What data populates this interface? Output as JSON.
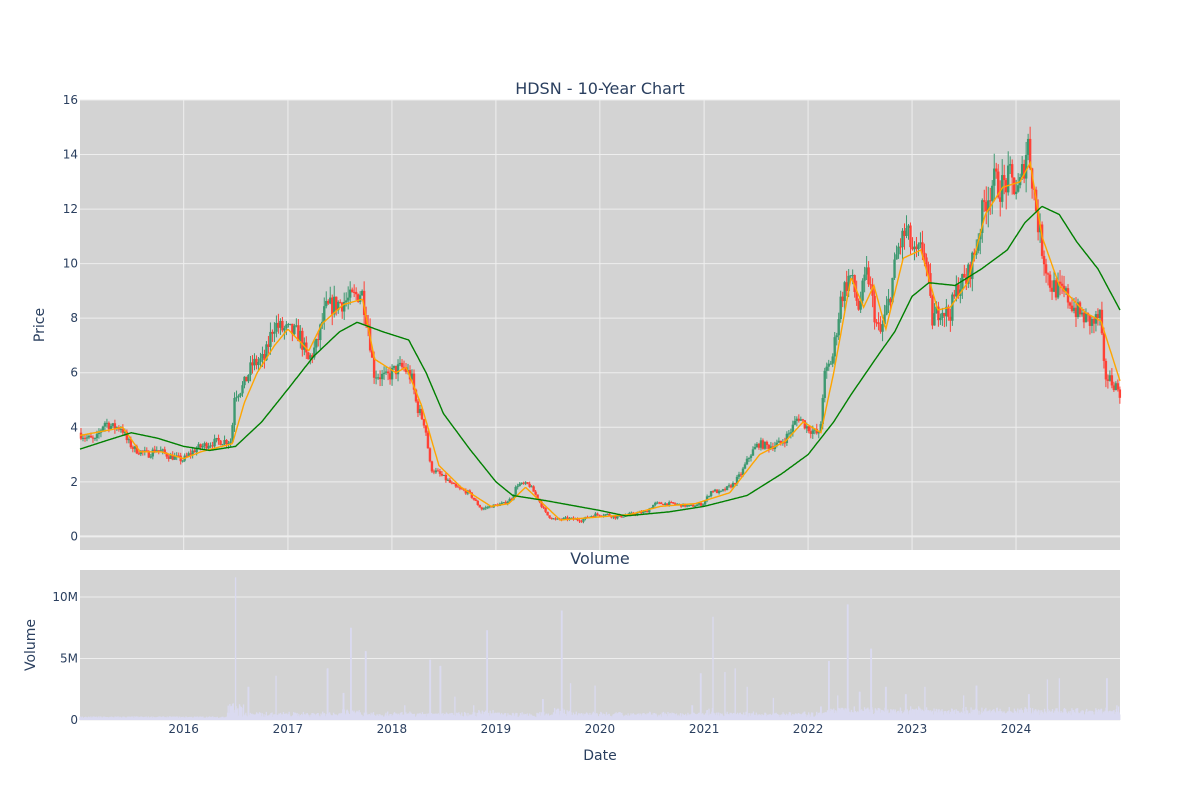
{
  "chart_data": [
    {
      "type": "candlestick",
      "title": "HDSN - 10-Year Chart",
      "xlabel": "",
      "ylabel": "Price",
      "ylim": [
        -0.5,
        16
      ],
      "yticks": [
        0,
        2,
        4,
        6,
        8,
        10,
        12,
        14,
        16
      ],
      "xlim": [
        "2015-01-02",
        "2024-12-31"
      ],
      "colors": {
        "up": "#3d9970",
        "down": "#ff4136",
        "ma_fast": "#ffa500",
        "ma_slow": "#008000",
        "plot_bg": "#d3d3d3",
        "grid": "#eeeeee"
      },
      "series": [
        {
          "type": "ohlc",
          "colors": [
            "#3d9970",
            "#ff4136"
          ]
        },
        {
          "type": "line",
          "color": "#ffa500"
        },
        {
          "type": "line",
          "color": "#008000"
        }
      ],
      "price_path": [
        [
          "2015-01-02",
          3.8
        ],
        [
          "2015-02-01",
          3.6
        ],
        [
          "2015-03-01",
          3.5
        ],
        [
          "2015-04-01",
          4.2
        ],
        [
          "2015-05-01",
          4.0
        ],
        [
          "2015-06-01",
          4.0
        ],
        [
          "2015-06-20",
          3.5
        ],
        [
          "2015-07-15",
          3.2
        ],
        [
          "2015-09-01",
          3.0
        ],
        [
          "2015-10-01",
          3.2
        ],
        [
          "2015-11-15",
          2.95
        ],
        [
          "2016-01-01",
          2.8
        ],
        [
          "2016-02-15",
          3.2
        ],
        [
          "2016-04-01",
          3.4
        ],
        [
          "2016-05-15",
          3.5
        ],
        [
          "2016-06-20",
          3.5
        ],
        [
          "2016-07-01",
          5.2
        ],
        [
          "2016-08-01",
          5.5
        ],
        [
          "2016-09-01",
          6.3
        ],
        [
          "2016-10-15",
          6.5
        ],
        [
          "2016-11-15",
          7.8
        ],
        [
          "2016-12-15",
          7.6
        ],
        [
          "2017-01-15",
          7.5
        ],
        [
          "2017-02-15",
          7.4
        ],
        [
          "2017-03-15",
          6.4
        ],
        [
          "2017-04-15",
          7.0
        ],
        [
          "2017-05-15",
          8.3
        ],
        [
          "2017-06-15",
          8.5
        ],
        [
          "2017-07-15",
          8.6
        ],
        [
          "2017-08-15",
          8.7
        ],
        [
          "2017-09-20",
          9.0
        ],
        [
          "2017-10-15",
          7.6
        ],
        [
          "2017-11-01",
          6.0
        ],
        [
          "2017-12-15",
          5.8
        ],
        [
          "2018-01-15",
          6.1
        ],
        [
          "2018-02-15",
          6.2
        ],
        [
          "2018-03-15",
          5.8
        ],
        [
          "2018-04-01",
          4.8
        ],
        [
          "2018-05-01",
          4.1
        ],
        [
          "2018-05-20",
          2.5
        ],
        [
          "2018-07-01",
          2.2
        ],
        [
          "2018-08-15",
          1.8
        ],
        [
          "2018-10-01",
          1.6
        ],
        [
          "2018-11-15",
          1.0
        ],
        [
          "2018-12-15",
          1.1
        ],
        [
          "2019-02-01",
          1.2
        ],
        [
          "2019-03-01",
          1.4
        ],
        [
          "2019-03-20",
          1.9
        ],
        [
          "2019-05-01",
          1.9
        ],
        [
          "2019-06-01",
          1.4
        ],
        [
          "2019-07-01",
          0.8
        ],
        [
          "2019-08-01",
          0.6
        ],
        [
          "2019-09-15",
          0.65
        ],
        [
          "2019-11-01",
          0.6
        ],
        [
          "2019-12-15",
          0.8
        ],
        [
          "2020-02-01",
          0.8
        ],
        [
          "2020-03-01",
          0.7
        ],
        [
          "2020-04-15",
          0.8
        ],
        [
          "2020-06-15",
          0.9
        ],
        [
          "2020-07-15",
          1.2
        ],
        [
          "2020-09-15",
          1.2
        ],
        [
          "2020-11-15",
          1.1
        ],
        [
          "2021-01-01",
          1.2
        ],
        [
          "2021-02-01",
          1.7
        ],
        [
          "2021-03-01",
          1.6
        ],
        [
          "2021-04-15",
          1.9
        ],
        [
          "2021-05-15",
          2.3
        ],
        [
          "2021-06-15",
          3.0
        ],
        [
          "2021-07-15",
          3.4
        ],
        [
          "2021-08-15",
          3.3
        ],
        [
          "2021-10-01",
          3.4
        ],
        [
          "2021-11-01",
          3.8
        ],
        [
          "2021-12-01",
          4.4
        ],
        [
          "2022-01-01",
          4.0
        ],
        [
          "2022-02-15",
          3.7
        ],
        [
          "2022-03-01",
          5.8
        ],
        [
          "2022-04-01",
          6.6
        ],
        [
          "2022-05-01",
          8.8
        ],
        [
          "2022-06-01",
          9.6
        ],
        [
          "2022-07-01",
          8.4
        ],
        [
          "2022-08-01",
          9.7
        ],
        [
          "2022-09-01",
          7.8
        ],
        [
          "2022-09-15",
          7.4
        ],
        [
          "2022-10-15",
          8.6
        ],
        [
          "2022-11-15",
          10.5
        ],
        [
          "2022-12-15",
          11.2
        ],
        [
          "2023-01-15",
          10.2
        ],
        [
          "2023-02-15",
          10.6
        ],
        [
          "2023-03-01",
          9.5
        ],
        [
          "2023-03-15",
          7.9
        ],
        [
          "2023-04-15",
          8.4
        ],
        [
          "2023-05-15",
          8.1
        ],
        [
          "2023-06-15",
          9.2
        ],
        [
          "2023-07-15",
          9.4
        ],
        [
          "2023-08-15",
          10.5
        ],
        [
          "2023-09-15",
          12.2
        ],
        [
          "2023-10-15",
          13.0
        ],
        [
          "2023-11-15",
          12.8
        ],
        [
          "2023-12-15",
          13.1
        ],
        [
          "2024-01-15",
          12.6
        ],
        [
          "2024-02-15",
          14.5
        ],
        [
          "2024-03-15",
          12.0
        ],
        [
          "2024-04-01",
          10.8
        ],
        [
          "2024-05-01",
          9.3
        ],
        [
          "2024-06-01",
          9.0
        ],
        [
          "2024-07-01",
          8.8
        ],
        [
          "2024-08-01",
          8.3
        ],
        [
          "2024-09-01",
          8.0
        ],
        [
          "2024-10-01",
          7.8
        ],
        [
          "2024-10-25",
          8.1
        ],
        [
          "2024-11-10",
          5.9
        ],
        [
          "2024-12-15",
          5.6
        ],
        [
          "2024-12-31",
          5.3
        ]
      ],
      "ma_fast_path": [
        [
          "2015-01-02",
          3.7
        ],
        [
          "2015-04-15",
          3.9
        ],
        [
          "2015-06-01",
          4.0
        ],
        [
          "2015-08-01",
          3.1
        ],
        [
          "2015-10-15",
          3.1
        ],
        [
          "2016-01-01",
          2.85
        ],
        [
          "2016-03-01",
          3.1
        ],
        [
          "2016-06-20",
          3.4
        ],
        [
          "2016-08-01",
          4.9
        ],
        [
          "2016-09-15",
          6.0
        ],
        [
          "2016-11-15",
          7.0
        ],
        [
          "2017-01-01",
          7.6
        ],
        [
          "2017-03-15",
          6.8
        ],
        [
          "2017-05-01",
          7.8
        ],
        [
          "2017-07-15",
          8.5
        ],
        [
          "2017-09-20",
          8.7
        ],
        [
          "2017-11-01",
          6.5
        ],
        [
          "2018-01-15",
          6.0
        ],
        [
          "2018-02-20",
          6.2
        ],
        [
          "2018-04-15",
          4.8
        ],
        [
          "2018-06-15",
          2.6
        ],
        [
          "2018-09-01",
          1.8
        ],
        [
          "2018-12-15",
          1.1
        ],
        [
          "2019-02-15",
          1.2
        ],
        [
          "2019-04-15",
          1.8
        ],
        [
          "2019-06-15",
          1.2
        ],
        [
          "2019-08-15",
          0.6
        ],
        [
          "2019-12-15",
          0.7
        ],
        [
          "2020-04-15",
          0.8
        ],
        [
          "2020-08-01",
          1.1
        ],
        [
          "2020-12-01",
          1.2
        ],
        [
          "2021-04-01",
          1.6
        ],
        [
          "2021-07-15",
          3.0
        ],
        [
          "2021-10-15",
          3.5
        ],
        [
          "2021-12-15",
          4.2
        ],
        [
          "2022-02-15",
          3.8
        ],
        [
          "2022-04-01",
          6.0
        ],
        [
          "2022-06-01",
          9.5
        ],
        [
          "2022-07-15",
          8.4
        ],
        [
          "2022-08-20",
          9.2
        ],
        [
          "2022-10-01",
          7.6
        ],
        [
          "2022-12-01",
          10.2
        ],
        [
          "2023-02-01",
          10.5
        ],
        [
          "2023-04-01",
          8.3
        ],
        [
          "2023-05-15",
          8.4
        ],
        [
          "2023-07-15",
          9.3
        ],
        [
          "2023-09-15",
          11.8
        ],
        [
          "2023-11-15",
          12.8
        ],
        [
          "2024-01-15",
          13.0
        ],
        [
          "2024-02-20",
          13.7
        ],
        [
          "2024-04-01",
          11.0
        ],
        [
          "2024-06-01",
          9.2
        ],
        [
          "2024-09-01",
          8.2
        ],
        [
          "2024-10-25",
          7.9
        ],
        [
          "2024-12-31",
          5.7
        ]
      ],
      "ma_slow_path": [
        [
          "2015-01-02",
          3.2
        ],
        [
          "2015-04-01",
          3.5
        ],
        [
          "2015-07-01",
          3.8
        ],
        [
          "2015-10-01",
          3.6
        ],
        [
          "2016-01-01",
          3.3
        ],
        [
          "2016-04-01",
          3.15
        ],
        [
          "2016-07-01",
          3.3
        ],
        [
          "2016-10-01",
          4.2
        ],
        [
          "2017-01-01",
          5.4
        ],
        [
          "2017-04-01",
          6.6
        ],
        [
          "2017-07-01",
          7.5
        ],
        [
          "2017-09-01",
          7.85
        ],
        [
          "2017-12-01",
          7.5
        ],
        [
          "2018-03-01",
          7.2
        ],
        [
          "2018-05-01",
          6.0
        ],
        [
          "2018-07-01",
          4.5
        ],
        [
          "2018-10-01",
          3.2
        ],
        [
          "2019-01-01",
          2.0
        ],
        [
          "2019-03-01",
          1.5
        ],
        [
          "2019-07-01",
          1.3
        ],
        [
          "2020-01-01",
          0.95
        ],
        [
          "2020-04-01",
          0.75
        ],
        [
          "2020-09-01",
          0.9
        ],
        [
          "2021-01-01",
          1.1
        ],
        [
          "2021-06-01",
          1.5
        ],
        [
          "2021-10-01",
          2.3
        ],
        [
          "2022-01-01",
          3.0
        ],
        [
          "2022-04-01",
          4.2
        ],
        [
          "2022-06-01",
          5.2
        ],
        [
          "2022-09-01",
          6.6
        ],
        [
          "2022-11-01",
          7.5
        ],
        [
          "2023-01-01",
          8.8
        ],
        [
          "2023-03-01",
          9.3
        ],
        [
          "2023-06-01",
          9.2
        ],
        [
          "2023-09-01",
          9.8
        ],
        [
          "2023-12-01",
          10.5
        ],
        [
          "2024-02-01",
          11.5
        ],
        [
          "2024-04-01",
          12.1
        ],
        [
          "2024-06-01",
          11.8
        ],
        [
          "2024-08-01",
          10.8
        ],
        [
          "2024-10-15",
          9.8
        ],
        [
          "2024-12-31",
          8.3
        ]
      ]
    },
    {
      "type": "bar",
      "title": "Volume",
      "xlabel": "Date",
      "ylabel": "Volume",
      "ylim": [
        0,
        12200000
      ],
      "yticks": [
        0,
        5000000,
        10000000
      ],
      "ytick_labels": [
        "0",
        "5M",
        "10M"
      ],
      "xticks": [
        "2016-01-01",
        "2017-01-01",
        "2018-01-01",
        "2019-01-01",
        "2020-01-01",
        "2021-01-01",
        "2022-01-01",
        "2023-01-01",
        "2024-01-01"
      ],
      "xtick_labels": [
        "2016",
        "2017",
        "2018",
        "2019",
        "2020",
        "2021",
        "2022",
        "2023",
        "2024"
      ],
      "xlim": [
        "2015-01-02",
        "2024-12-31"
      ],
      "bar_color": "#dadaf0",
      "volume_spikes": [
        [
          "2016-07-01",
          11600000
        ],
        [
          "2016-08-15",
          2700000
        ],
        [
          "2016-11-20",
          3600000
        ],
        [
          "2017-05-20",
          4200000
        ],
        [
          "2017-07-15",
          2200000
        ],
        [
          "2017-08-10",
          7500000
        ],
        [
          "2017-10-01",
          5600000
        ],
        [
          "2018-02-15",
          1200000
        ],
        [
          "2018-05-15",
          4900000
        ],
        [
          "2018-06-20",
          4400000
        ],
        [
          "2018-08-10",
          1900000
        ],
        [
          "2018-10-15",
          1200000
        ],
        [
          "2018-12-01",
          7300000
        ],
        [
          "2019-06-15",
          1700000
        ],
        [
          "2019-08-20",
          8900000
        ],
        [
          "2019-09-20",
          3000000
        ],
        [
          "2019-12-15",
          2800000
        ],
        [
          "2020-11-20",
          1200000
        ],
        [
          "2020-12-20",
          3800000
        ],
        [
          "2021-02-01",
          8400000
        ],
        [
          "2021-03-15",
          3900000
        ],
        [
          "2021-04-20",
          4200000
        ],
        [
          "2021-06-01",
          2700000
        ],
        [
          "2021-09-01",
          1800000
        ],
        [
          "2022-02-15",
          1100000
        ],
        [
          "2022-03-15",
          4800000
        ],
        [
          "2022-04-15",
          2000000
        ],
        [
          "2022-05-20",
          9400000
        ],
        [
          "2022-07-01",
          2300000
        ],
        [
          "2022-08-10",
          5800000
        ],
        [
          "2022-10-01",
          2700000
        ],
        [
          "2022-12-10",
          2100000
        ],
        [
          "2023-02-15",
          2700000
        ],
        [
          "2023-07-01",
          2000000
        ],
        [
          "2023-08-15",
          2800000
        ],
        [
          "2024-02-15",
          2100000
        ],
        [
          "2024-04-20",
          3300000
        ],
        [
          "2024-06-01",
          3400000
        ],
        [
          "2024-11-15",
          3400000
        ],
        [
          "2024-12-20",
          1200000
        ]
      ]
    }
  ]
}
